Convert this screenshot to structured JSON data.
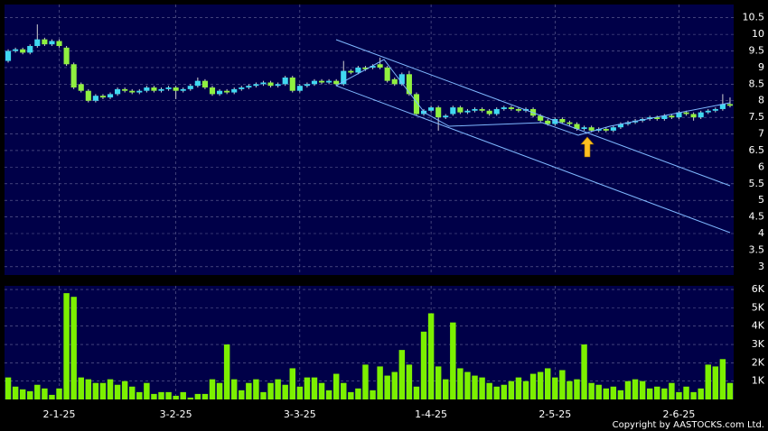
{
  "chart_data": {
    "type": "candlestick",
    "categories": [
      null,
      null,
      null,
      null,
      null,
      null,
      null,
      "2-1-25",
      null,
      null,
      null,
      null,
      null,
      null,
      null,
      null,
      null,
      null,
      null,
      null,
      null,
      null,
      null,
      "3-2-25",
      null,
      null,
      null,
      null,
      null,
      null,
      null,
      null,
      null,
      null,
      null,
      null,
      null,
      null,
      null,
      null,
      "3-3-25",
      null,
      null,
      null,
      null,
      null,
      null,
      null,
      null,
      null,
      null,
      null,
      null,
      null,
      null,
      null,
      null,
      null,
      "1-4-25",
      null,
      null,
      null,
      null,
      null,
      null,
      null,
      null,
      null,
      null,
      null,
      null,
      null,
      null,
      null,
      null,
      "2-5-25",
      null,
      null,
      null,
      null,
      null,
      null,
      null,
      null,
      null,
      null,
      null,
      null,
      null,
      null,
      null,
      null,
      "2-6-25",
      null,
      null,
      null,
      null,
      null,
      null,
      null,
      null
    ],
    "ohlc": [
      [
        9.2,
        9.55,
        9.15,
        9.5
      ],
      [
        9.5,
        9.6,
        9.45,
        9.55
      ],
      [
        9.55,
        9.6,
        9.4,
        9.45
      ],
      [
        9.45,
        9.7,
        9.4,
        9.65
      ],
      [
        9.65,
        10.3,
        9.6,
        9.85
      ],
      [
        9.85,
        9.9,
        9.65,
        9.7
      ],
      [
        9.7,
        9.85,
        9.65,
        9.8
      ],
      [
        9.8,
        9.85,
        9.6,
        9.65
      ],
      [
        9.6,
        9.65,
        9.05,
        9.1
      ],
      [
        9.1,
        9.15,
        8.35,
        8.4
      ],
      [
        8.5,
        8.55,
        8.25,
        8.3
      ],
      [
        8.3,
        8.35,
        7.95,
        8.0
      ],
      [
        8.0,
        8.2,
        7.95,
        8.15
      ],
      [
        8.15,
        8.2,
        8.05,
        8.1
      ],
      [
        8.1,
        8.25,
        8.05,
        8.2
      ],
      [
        8.2,
        8.4,
        8.15,
        8.35
      ],
      [
        8.35,
        8.4,
        8.25,
        8.3
      ],
      [
        8.3,
        8.35,
        8.2,
        8.25
      ],
      [
        8.25,
        8.35,
        8.2,
        8.3
      ],
      [
        8.3,
        8.45,
        8.25,
        8.4
      ],
      [
        8.4,
        8.45,
        8.25,
        8.3
      ],
      [
        8.3,
        8.4,
        8.25,
        8.35
      ],
      [
        8.35,
        8.45,
        8.3,
        8.4
      ],
      [
        8.4,
        8.45,
        8.05,
        8.3
      ],
      [
        8.3,
        8.4,
        8.25,
        8.35
      ],
      [
        8.35,
        8.5,
        8.3,
        8.45
      ],
      [
        8.45,
        8.7,
        8.4,
        8.6
      ],
      [
        8.6,
        8.65,
        8.35,
        8.4
      ],
      [
        8.4,
        8.45,
        8.15,
        8.2
      ],
      [
        8.2,
        8.35,
        8.15,
        8.3
      ],
      [
        8.3,
        8.35,
        8.2,
        8.25
      ],
      [
        8.25,
        8.4,
        8.2,
        8.35
      ],
      [
        8.35,
        8.45,
        8.3,
        8.4
      ],
      [
        8.4,
        8.5,
        8.35,
        8.45
      ],
      [
        8.45,
        8.55,
        8.4,
        8.5
      ],
      [
        8.5,
        8.6,
        8.45,
        8.55
      ],
      [
        8.55,
        8.6,
        8.4,
        8.45
      ],
      [
        8.45,
        8.55,
        8.4,
        8.5
      ],
      [
        8.5,
        8.75,
        8.45,
        8.7
      ],
      [
        8.7,
        8.75,
        8.25,
        8.3
      ],
      [
        8.3,
        8.5,
        8.25,
        8.45
      ],
      [
        8.45,
        8.55,
        8.4,
        8.5
      ],
      [
        8.5,
        8.65,
        8.45,
        8.6
      ],
      [
        8.6,
        8.65,
        8.5,
        8.55
      ],
      [
        8.55,
        8.65,
        8.5,
        8.6
      ],
      [
        8.6,
        8.65,
        8.45,
        8.5
      ],
      [
        8.5,
        9.2,
        8.45,
        8.9
      ],
      [
        8.9,
        8.95,
        8.8,
        8.85
      ],
      [
        8.85,
        9.05,
        8.8,
        9.0
      ],
      [
        9.0,
        9.05,
        8.9,
        8.95
      ],
      [
        9.0,
        9.1,
        8.95,
        9.05
      ],
      [
        9.1,
        9.3,
        8.95,
        9.0
      ],
      [
        9.0,
        9.05,
        8.55,
        8.6
      ],
      [
        8.65,
        8.7,
        8.45,
        8.5
      ],
      [
        8.5,
        8.85,
        8.45,
        8.8
      ],
      [
        8.8,
        8.9,
        8.15,
        8.2
      ],
      [
        8.2,
        8.25,
        7.55,
        7.6
      ],
      [
        7.6,
        7.75,
        7.55,
        7.7
      ],
      [
        7.7,
        7.85,
        7.65,
        7.8
      ],
      [
        7.8,
        7.85,
        7.1,
        7.5
      ],
      [
        7.5,
        7.6,
        7.45,
        7.55
      ],
      [
        7.6,
        7.85,
        7.55,
        7.8
      ],
      [
        7.8,
        7.85,
        7.6,
        7.65
      ],
      [
        7.65,
        7.75,
        7.6,
        7.7
      ],
      [
        7.7,
        7.8,
        7.65,
        7.75
      ],
      [
        7.75,
        7.8,
        7.65,
        7.7
      ],
      [
        7.7,
        7.75,
        7.55,
        7.6
      ],
      [
        7.6,
        7.8,
        7.55,
        7.75
      ],
      [
        7.75,
        7.85,
        7.7,
        7.8
      ],
      [
        7.8,
        7.85,
        7.7,
        7.75
      ],
      [
        7.75,
        7.8,
        7.65,
        7.7
      ],
      [
        7.7,
        7.8,
        7.65,
        7.75
      ],
      [
        7.75,
        7.8,
        7.5,
        7.55
      ],
      [
        7.55,
        7.6,
        7.35,
        7.4
      ],
      [
        7.4,
        7.45,
        7.25,
        7.3
      ],
      [
        7.3,
        7.5,
        7.25,
        7.45
      ],
      [
        7.45,
        7.5,
        7.3,
        7.35
      ],
      [
        7.35,
        7.4,
        7.25,
        7.3
      ],
      [
        7.3,
        7.35,
        7.1,
        7.15
      ],
      [
        7.15,
        7.25,
        7.1,
        7.2
      ],
      [
        7.2,
        7.25,
        7.05,
        7.1
      ],
      [
        7.1,
        7.2,
        7.05,
        7.15
      ],
      [
        7.15,
        7.2,
        7.05,
        7.1
      ],
      [
        7.1,
        7.25,
        7.05,
        7.2
      ],
      [
        7.2,
        7.35,
        7.15,
        7.3
      ],
      [
        7.3,
        7.4,
        7.25,
        7.35
      ],
      [
        7.35,
        7.45,
        7.3,
        7.4
      ],
      [
        7.4,
        7.5,
        7.35,
        7.45
      ],
      [
        7.45,
        7.55,
        7.4,
        7.5
      ],
      [
        7.5,
        7.55,
        7.4,
        7.45
      ],
      [
        7.45,
        7.6,
        7.4,
        7.55
      ],
      [
        7.55,
        7.6,
        7.45,
        7.5
      ],
      [
        7.5,
        7.7,
        7.45,
        7.65
      ],
      [
        7.65,
        7.7,
        7.55,
        7.6
      ],
      [
        7.6,
        7.65,
        7.4,
        7.5
      ],
      [
        7.5,
        7.7,
        7.45,
        7.65
      ],
      [
        7.65,
        7.75,
        7.6,
        7.7
      ],
      [
        7.7,
        7.8,
        7.65,
        7.75
      ],
      [
        7.75,
        8.2,
        7.7,
        7.9
      ],
      [
        7.9,
        8.1,
        7.8,
        7.85
      ]
    ],
    "up_color": "#40d8f0",
    "down_color": "#90f040",
    "ylim": [
      2.75,
      10.9
    ],
    "yticks": [
      3,
      3.5,
      4,
      4.5,
      5,
      5.5,
      6,
      6.5,
      7,
      7.5,
      8,
      8.5,
      9,
      9.5,
      10,
      10.5
    ],
    "volume": {
      "values": [
        1200,
        700,
        550,
        450,
        800,
        600,
        250,
        600,
        5800,
        5600,
        1200,
        1100,
        900,
        900,
        1100,
        800,
        1000,
        700,
        400,
        900,
        300,
        400,
        400,
        200,
        400,
        100,
        300,
        300,
        1100,
        900,
        3000,
        1100,
        500,
        900,
        1100,
        400,
        900,
        1100,
        800,
        1700,
        700,
        1200,
        1200,
        900,
        500,
        1400,
        900,
        400,
        600,
        1900,
        500,
        1800,
        1300,
        1500,
        2700,
        1900,
        700,
        3700,
        4700,
        1800,
        1100,
        4200,
        1700,
        1500,
        1300,
        1200,
        900,
        700,
        800,
        1000,
        1200,
        1000,
        1400,
        1500,
        1700,
        1200,
        1600,
        1000,
        1100,
        3000,
        900,
        800,
        600,
        700,
        500,
        1000,
        1100,
        1000,
        600,
        700,
        600,
        900,
        400,
        700,
        400,
        600,
        1900,
        1800,
        2200,
        900
      ],
      "color": "#7cf000",
      "ylim": [
        0,
        6200
      ],
      "yticks": [
        {
          "value": 1000,
          "label": "1K"
        },
        {
          "value": 2000,
          "label": "2K"
        },
        {
          "value": 3000,
          "label": "3K"
        },
        {
          "value": 4000,
          "label": "4K"
        },
        {
          "value": 5000,
          "label": "5K"
        },
        {
          "value": 6000,
          "label": "6K"
        }
      ]
    },
    "grid": true,
    "copyright": "Copyright by AASTOCKS.com Ltd."
  }
}
